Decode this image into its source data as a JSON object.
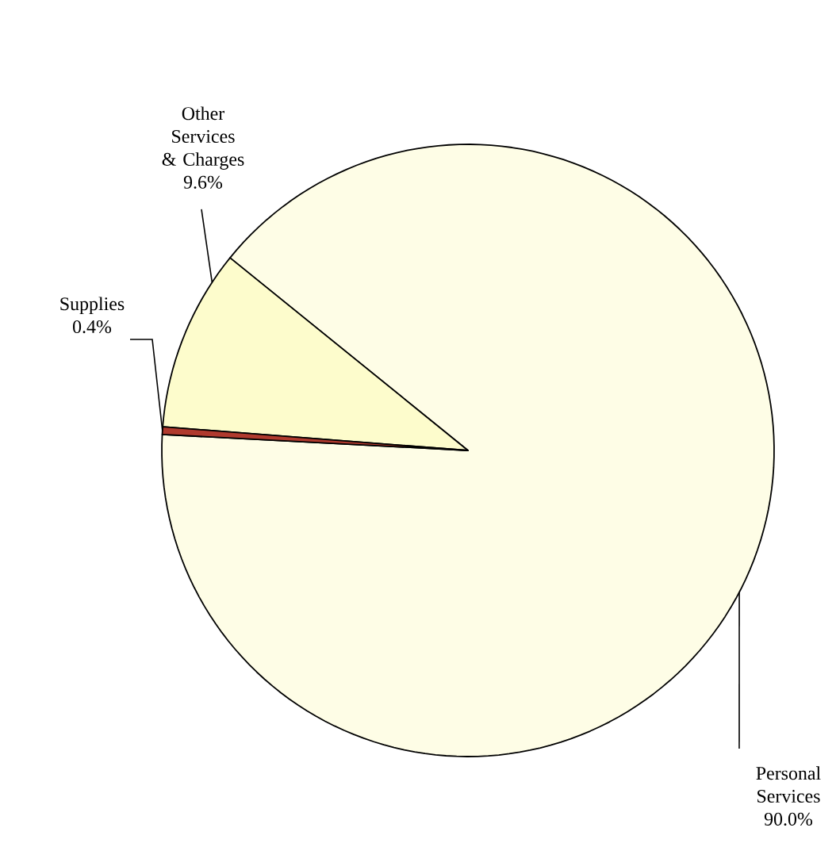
{
  "chart_data": {
    "type": "pie",
    "categories": [
      "Personal Services",
      "Other Services & Charges",
      "Supplies"
    ],
    "values": [
      90.0,
      9.6,
      0.4
    ],
    "value_labels": [
      "90.0%",
      "9.6%",
      "0.4%"
    ],
    "colors": [
      "#fefde6",
      "#fdfccc",
      "#b03a2e"
    ],
    "data_labels": true
  }
}
